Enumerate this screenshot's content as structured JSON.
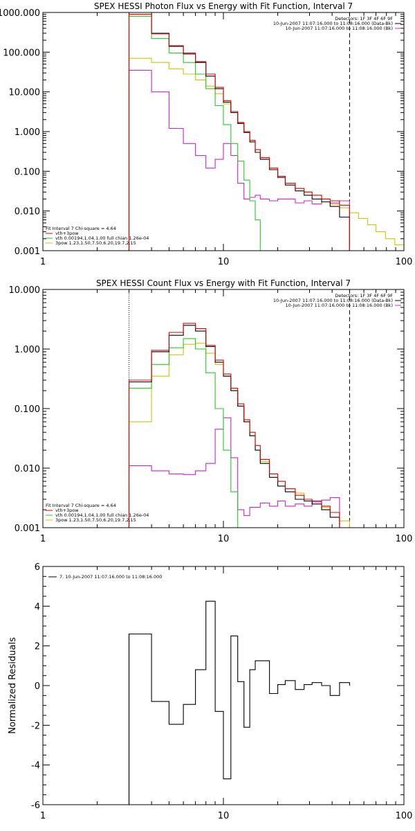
{
  "colors": {
    "black": "#000000",
    "red": "#e00000",
    "green": "#22cc22",
    "yellow": "#d4c400",
    "magenta": "#d020d0",
    "background": "#ffffff"
  },
  "chart_data": [
    {
      "type": "line",
      "title": "SPEX HESSI Photon Flux vs Energy with Fit Function, Interval 7",
      "xlabel": "",
      "ylabel": "",
      "xscale": "log",
      "yscale": "log",
      "xlim": [
        1,
        100
      ],
      "ylim": [
        0.001,
        1000
      ],
      "xticks": [
        "1",
        "10",
        "100"
      ],
      "yticks": [
        "1000.000",
        "100.000",
        "10.000",
        "1.000",
        "0.100",
        "0.010",
        "0.001"
      ],
      "header_lines": [
        "Detectors: 1F 3F 4F 6F 9F",
        "10-Jun-2007 11:07:16.000 to 11:08:16.000 (Data-Bk)",
        "10-Jun-2007 11:07:16.000 to 11:08:16.000 (Bk)"
      ],
      "legend_position": "bottom-left",
      "legend": [
        "Fit Interval  7    Chi-square = 4.64",
        "vth+3pow",
        "vth 0.00194,1.04,1.00   full chian 1.26e-04",
        "3pow 1.23,1.50,7.50,6.20,19.7,2.15"
      ],
      "vlines": [
        {
          "x": 3,
          "style": "dotted"
        },
        {
          "x": 50,
          "style": "dashed"
        }
      ],
      "energy_edges": [
        3,
        4,
        5,
        6,
        7,
        8,
        9,
        10,
        11,
        12,
        13,
        14,
        15,
        16,
        18,
        20,
        22,
        25,
        28,
        31,
        35,
        39,
        44,
        50,
        56,
        63,
        70,
        79,
        89,
        100
      ],
      "series": [
        {
          "name": "Data-Bk",
          "color": "black",
          "values": [
            900,
            300,
            140,
            90,
            55,
            25,
            12,
            5.5,
            3,
            1.6,
            0.95,
            0.55,
            0.3,
            0.2,
            0.11,
            0.07,
            0.045,
            0.032,
            0.025,
            0.02,
            0.017,
            0.013,
            0.007
          ]
        },
        {
          "name": "vth+3pow",
          "color": "red",
          "values": [
            900,
            290,
            145,
            95,
            58,
            28,
            13,
            6,
            3.2,
            1.7,
            1.0,
            0.6,
            0.35,
            0.22,
            0.12,
            0.075,
            0.05,
            0.037,
            0.03,
            0.025,
            0.02,
            0.018,
            0.014
          ]
        },
        {
          "name": "vth",
          "color": "green",
          "values": [
            800,
            220,
            95,
            55,
            28,
            12,
            4.5,
            1.5,
            0.5,
            0.18,
            0.06,
            0.018,
            0.006,
            0.001
          ]
        },
        {
          "name": "3pow",
          "color": "yellow",
          "values": [
            70,
            55,
            38,
            28,
            20,
            14,
            9,
            5,
            3,
            1.6,
            1.0,
            0.6,
            0.35,
            0.22,
            0.12,
            0.075,
            0.05,
            0.037,
            0.03,
            0.025,
            0.02,
            0.015,
            0.012,
            0.009,
            0.0065,
            0.0045,
            0.003,
            0.002,
            0.0014
          ]
        },
        {
          "name": "Bk",
          "color": "magenta",
          "values": [
            35,
            10,
            1.2,
            0.5,
            0.25,
            0.12,
            0.2,
            0.5,
            0.25,
            0.05,
            0.02,
            0.022,
            0.025,
            0.02,
            0.018,
            0.02,
            0.02,
            0.016,
            0.018,
            0.015,
            0.017,
            0.016,
            0.018
          ]
        }
      ]
    },
    {
      "type": "line",
      "title": "SPEX HESSI Count Flux vs Energy with Fit Function, Interval 7",
      "xlabel": "",
      "ylabel": "",
      "xscale": "log",
      "yscale": "log",
      "xlim": [
        1,
        100
      ],
      "ylim": [
        0.001,
        10
      ],
      "xticks": [
        "1",
        "10",
        "100"
      ],
      "yticks": [
        "10.000",
        "1.000",
        "0.100",
        "0.010",
        "0.001"
      ],
      "header_lines": [
        "Detectors: 1F 3F 4F 6F 9F",
        "10-Jun-2007 11:07:16.000 to 11:08:16.000 (Data-Bk)",
        "10-Jun-2007 11:07:16.000 to 11:08:16.000 (Bk)"
      ],
      "legend_position": "bottom-left",
      "legend": [
        "Fit Interval  7    Chi-square = 4.64",
        "vth+3pow",
        "vth 0.00194,1.04,1.00   full chian 1.26e-04",
        "3pow 1.23,1.50,7.50,6.20,19.7,2.15"
      ],
      "vlines": [
        {
          "x": 3,
          "style": "dotted"
        },
        {
          "x": 50,
          "style": "dashed"
        }
      ],
      "energy_edges": [
        3,
        4,
        5,
        6,
        7,
        8,
        9,
        10,
        11,
        12,
        13,
        14,
        15,
        16,
        18,
        20,
        22,
        25,
        28,
        31,
        35,
        39,
        44,
        50,
        56,
        63
      ],
      "series": [
        {
          "name": "Data-Bk",
          "color": "black",
          "values": [
            0.28,
            0.9,
            1.7,
            2.5,
            2.0,
            1.1,
            0.6,
            0.35,
            0.2,
            0.11,
            0.06,
            0.035,
            0.02,
            0.012,
            0.007,
            0.005,
            0.004,
            0.003,
            0.0028,
            0.0025,
            0.002,
            0.0015
          ]
        },
        {
          "name": "vth+3pow",
          "color": "red",
          "values": [
            0.3,
            0.95,
            1.9,
            2.7,
            2.2,
            1.15,
            0.65,
            0.38,
            0.22,
            0.12,
            0.065,
            0.04,
            0.024,
            0.014,
            0.008,
            0.006,
            0.0045,
            0.0035,
            0.003,
            0.0028,
            0.0023,
            0.0018
          ]
        },
        {
          "name": "vth",
          "color": "green",
          "values": [
            0.22,
            0.55,
            1.05,
            1.5,
            1.0,
            0.4,
            0.1,
            0.02,
            0.004,
            0.001
          ]
        },
        {
          "name": "3pow",
          "color": "yellow",
          "values": [
            0.06,
            0.35,
            0.8,
            1.2,
            1.25,
            0.85,
            0.55,
            0.35,
            0.2,
            0.11,
            0.06,
            0.035,
            0.02,
            0.013,
            0.008,
            0.006,
            0.0045,
            0.0038,
            0.003,
            0.0028,
            0.0022,
            0.0018,
            0.0013,
            0.001
          ]
        },
        {
          "name": "Bk",
          "color": "magenta",
          "values": [
            0.011,
            0.009,
            0.008,
            0.0078,
            0.009,
            0.012,
            0.045,
            0.07,
            0.015,
            0.002,
            0.0016,
            0.0022,
            0.0022,
            0.0026,
            0.0023,
            0.0028,
            0.0023,
            0.0025,
            0.0023,
            0.0027,
            0.0029,
            0.0032
          ]
        }
      ]
    },
    {
      "type": "line",
      "title": "",
      "xlabel": "",
      "ylabel": "Normalized Residuals",
      "xscale": "log",
      "yscale": "linear",
      "xlim": [
        1,
        100
      ],
      "ylim": [
        -6,
        6
      ],
      "xticks": [
        "1",
        "10",
        "100"
      ],
      "yticks": [
        "6",
        "4",
        "2",
        "0",
        "-2",
        "-4",
        "-6"
      ],
      "legend_position": "top-left",
      "legend": [
        "7. 10-Jun-2007 11:07:16.000 to 11:08:16.000"
      ],
      "energy_edges": [
        3,
        4,
        5,
        6,
        7,
        8,
        9,
        10,
        11,
        12,
        13,
        14,
        15,
        16,
        18,
        20,
        22,
        25,
        28,
        31,
        35,
        39,
        44,
        50
      ],
      "series": [
        {
          "color": "black",
          "values": [
            2.6,
            -0.8,
            -1.95,
            -0.95,
            0.8,
            4.25,
            -1.3,
            -4.7,
            2.5,
            0.2,
            -2.1,
            0.8,
            1.25,
            1.25,
            -0.4,
            0.05,
            0.25,
            -0.2,
            0.05,
            0.15,
            0.0,
            -0.5,
            0.15
          ]
        }
      ]
    }
  ]
}
